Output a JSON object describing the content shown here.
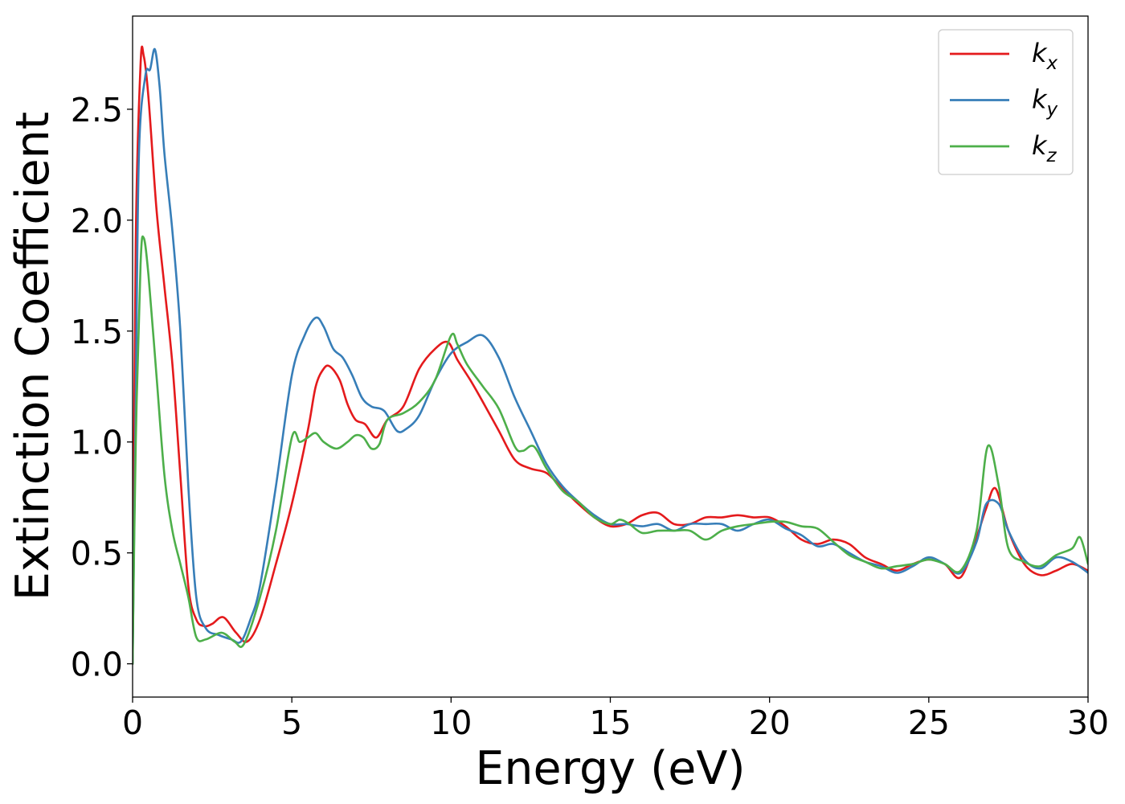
{
  "chart_data": {
    "type": "line",
    "title": "",
    "xlabel": "Energy (eV)",
    "ylabel": "Extinction Coefficient",
    "xlim": [
      0,
      30
    ],
    "ylim": [
      -0.15,
      2.92
    ],
    "xticks": [
      0,
      5,
      10,
      15,
      20,
      25,
      30
    ],
    "xtick_labels": [
      "0",
      "5",
      "10",
      "15",
      "20",
      "25",
      "30"
    ],
    "yticks": [
      0.0,
      0.5,
      1.0,
      1.5,
      2.0,
      2.5
    ],
    "ytick_labels": [
      "0.0",
      "0.5",
      "1.0",
      "1.5",
      "2.0",
      "2.5"
    ],
    "grid": false,
    "legend_position": "top-right",
    "series": [
      {
        "name": "k_x",
        "label_base": "k",
        "label_sub": "x",
        "color": "#e41a1c",
        "x": [
          0,
          0.1,
          0.25,
          0.35,
          0.5,
          0.75,
          1.0,
          1.25,
          1.5,
          1.75,
          2.0,
          2.25,
          2.5,
          2.85,
          3.25,
          3.6,
          4.0,
          4.5,
          5.0,
          5.5,
          5.75,
          6.0,
          6.2,
          6.5,
          6.75,
          7.0,
          7.3,
          7.65,
          8.0,
          8.5,
          9.0,
          9.5,
          9.9,
          10.2,
          10.6,
          11.0,
          11.5,
          12.0,
          12.5,
          13.0,
          13.5,
          14.0,
          14.5,
          15.0,
          15.5,
          16.0,
          16.5,
          17.0,
          17.5,
          18.0,
          18.5,
          19.0,
          19.5,
          20.0,
          20.5,
          21.0,
          21.5,
          22.0,
          22.5,
          23.0,
          23.5,
          24.0,
          24.5,
          25.0,
          25.5,
          26.0,
          26.5,
          26.8,
          27.1,
          27.5,
          28.0,
          28.5,
          29.0,
          29.5,
          30.0
        ],
        "y": [
          0.0,
          1.9,
          2.7,
          2.74,
          2.55,
          2.05,
          1.7,
          1.35,
          0.85,
          0.35,
          0.2,
          0.17,
          0.18,
          0.21,
          0.14,
          0.1,
          0.2,
          0.45,
          0.72,
          1.05,
          1.25,
          1.33,
          1.34,
          1.28,
          1.17,
          1.1,
          1.08,
          1.02,
          1.1,
          1.16,
          1.33,
          1.42,
          1.45,
          1.37,
          1.28,
          1.18,
          1.05,
          0.92,
          0.88,
          0.86,
          0.79,
          0.72,
          0.66,
          0.62,
          0.63,
          0.67,
          0.68,
          0.63,
          0.63,
          0.66,
          0.66,
          0.67,
          0.66,
          0.66,
          0.62,
          0.56,
          0.54,
          0.56,
          0.54,
          0.48,
          0.45,
          0.42,
          0.45,
          0.47,
          0.45,
          0.39,
          0.57,
          0.7,
          0.79,
          0.6,
          0.45,
          0.4,
          0.42,
          0.45,
          0.42
        ]
      },
      {
        "name": "k_y",
        "label_base": "k",
        "label_sub": "y",
        "color": "#377eb8",
        "x": [
          0,
          0.1,
          0.2,
          0.4,
          0.55,
          0.7,
          0.85,
          1.0,
          1.25,
          1.5,
          1.75,
          2.0,
          2.3,
          2.7,
          3.1,
          3.4,
          3.7,
          4.0,
          4.5,
          5.0,
          5.4,
          5.75,
          6.0,
          6.3,
          6.6,
          6.9,
          7.2,
          7.5,
          7.9,
          8.3,
          8.6,
          9.0,
          9.5,
          10.0,
          10.5,
          11.0,
          11.5,
          12.0,
          12.5,
          13.0,
          13.5,
          14.0,
          14.5,
          15.0,
          15.5,
          16.0,
          16.5,
          17.0,
          17.5,
          18.0,
          18.5,
          19.0,
          19.5,
          20.0,
          20.5,
          21.0,
          21.5,
          22.0,
          22.5,
          23.0,
          23.5,
          24.0,
          24.5,
          25.0,
          25.5,
          26.0,
          26.5,
          26.8,
          27.2,
          27.5,
          28.0,
          28.5,
          29.0,
          29.5,
          30.0
        ],
        "y": [
          0.0,
          1.2,
          2.3,
          2.65,
          2.68,
          2.77,
          2.6,
          2.3,
          1.95,
          1.5,
          0.8,
          0.3,
          0.16,
          0.13,
          0.11,
          0.1,
          0.2,
          0.35,
          0.8,
          1.3,
          1.48,
          1.56,
          1.52,
          1.42,
          1.38,
          1.3,
          1.2,
          1.16,
          1.14,
          1.05,
          1.06,
          1.12,
          1.28,
          1.4,
          1.45,
          1.48,
          1.38,
          1.2,
          1.05,
          0.9,
          0.8,
          0.73,
          0.67,
          0.63,
          0.63,
          0.62,
          0.63,
          0.6,
          0.63,
          0.63,
          0.63,
          0.6,
          0.63,
          0.65,
          0.61,
          0.58,
          0.53,
          0.54,
          0.5,
          0.46,
          0.44,
          0.41,
          0.44,
          0.48,
          0.45,
          0.41,
          0.55,
          0.72,
          0.72,
          0.6,
          0.47,
          0.43,
          0.48,
          0.46,
          0.41
        ]
      },
      {
        "name": "k_z",
        "label_base": "k",
        "label_sub": "z",
        "color": "#4daf4a",
        "x": [
          0,
          0.1,
          0.25,
          0.35,
          0.5,
          0.75,
          1.0,
          1.25,
          1.5,
          1.75,
          2.0,
          2.3,
          2.8,
          3.2,
          3.5,
          4.0,
          4.5,
          5.0,
          5.25,
          5.5,
          5.75,
          6.0,
          6.4,
          6.75,
          7.0,
          7.25,
          7.5,
          7.75,
          8.0,
          8.5,
          9.0,
          9.5,
          10.0,
          10.2,
          10.5,
          11.0,
          11.5,
          12.0,
          12.25,
          12.6,
          13.0,
          13.5,
          14.0,
          14.5,
          15.0,
          15.3,
          15.6,
          16.0,
          16.5,
          17.0,
          17.5,
          18.0,
          18.5,
          19.0,
          19.5,
          20.0,
          20.5,
          21.0,
          21.5,
          22.0,
          22.5,
          23.0,
          23.5,
          24.0,
          24.5,
          25.0,
          25.5,
          26.0,
          26.5,
          26.85,
          27.2,
          27.5,
          28.0,
          28.5,
          29.0,
          29.5,
          29.75,
          30.0
        ],
        "y": [
          0.0,
          1.0,
          1.8,
          1.92,
          1.75,
          1.3,
          0.85,
          0.6,
          0.45,
          0.3,
          0.12,
          0.11,
          0.14,
          0.1,
          0.09,
          0.3,
          0.6,
          1.02,
          1.0,
          1.02,
          1.04,
          1.0,
          0.97,
          1.0,
          1.03,
          1.02,
          0.97,
          0.99,
          1.1,
          1.13,
          1.18,
          1.28,
          1.48,
          1.44,
          1.35,
          1.25,
          1.15,
          0.98,
          0.96,
          0.98,
          0.88,
          0.78,
          0.73,
          0.66,
          0.63,
          0.65,
          0.63,
          0.59,
          0.6,
          0.6,
          0.6,
          0.56,
          0.6,
          0.62,
          0.63,
          0.64,
          0.64,
          0.62,
          0.61,
          0.55,
          0.49,
          0.46,
          0.43,
          0.44,
          0.45,
          0.47,
          0.45,
          0.42,
          0.6,
          0.98,
          0.8,
          0.52,
          0.46,
          0.44,
          0.49,
          0.52,
          0.57,
          0.45
        ]
      }
    ]
  }
}
